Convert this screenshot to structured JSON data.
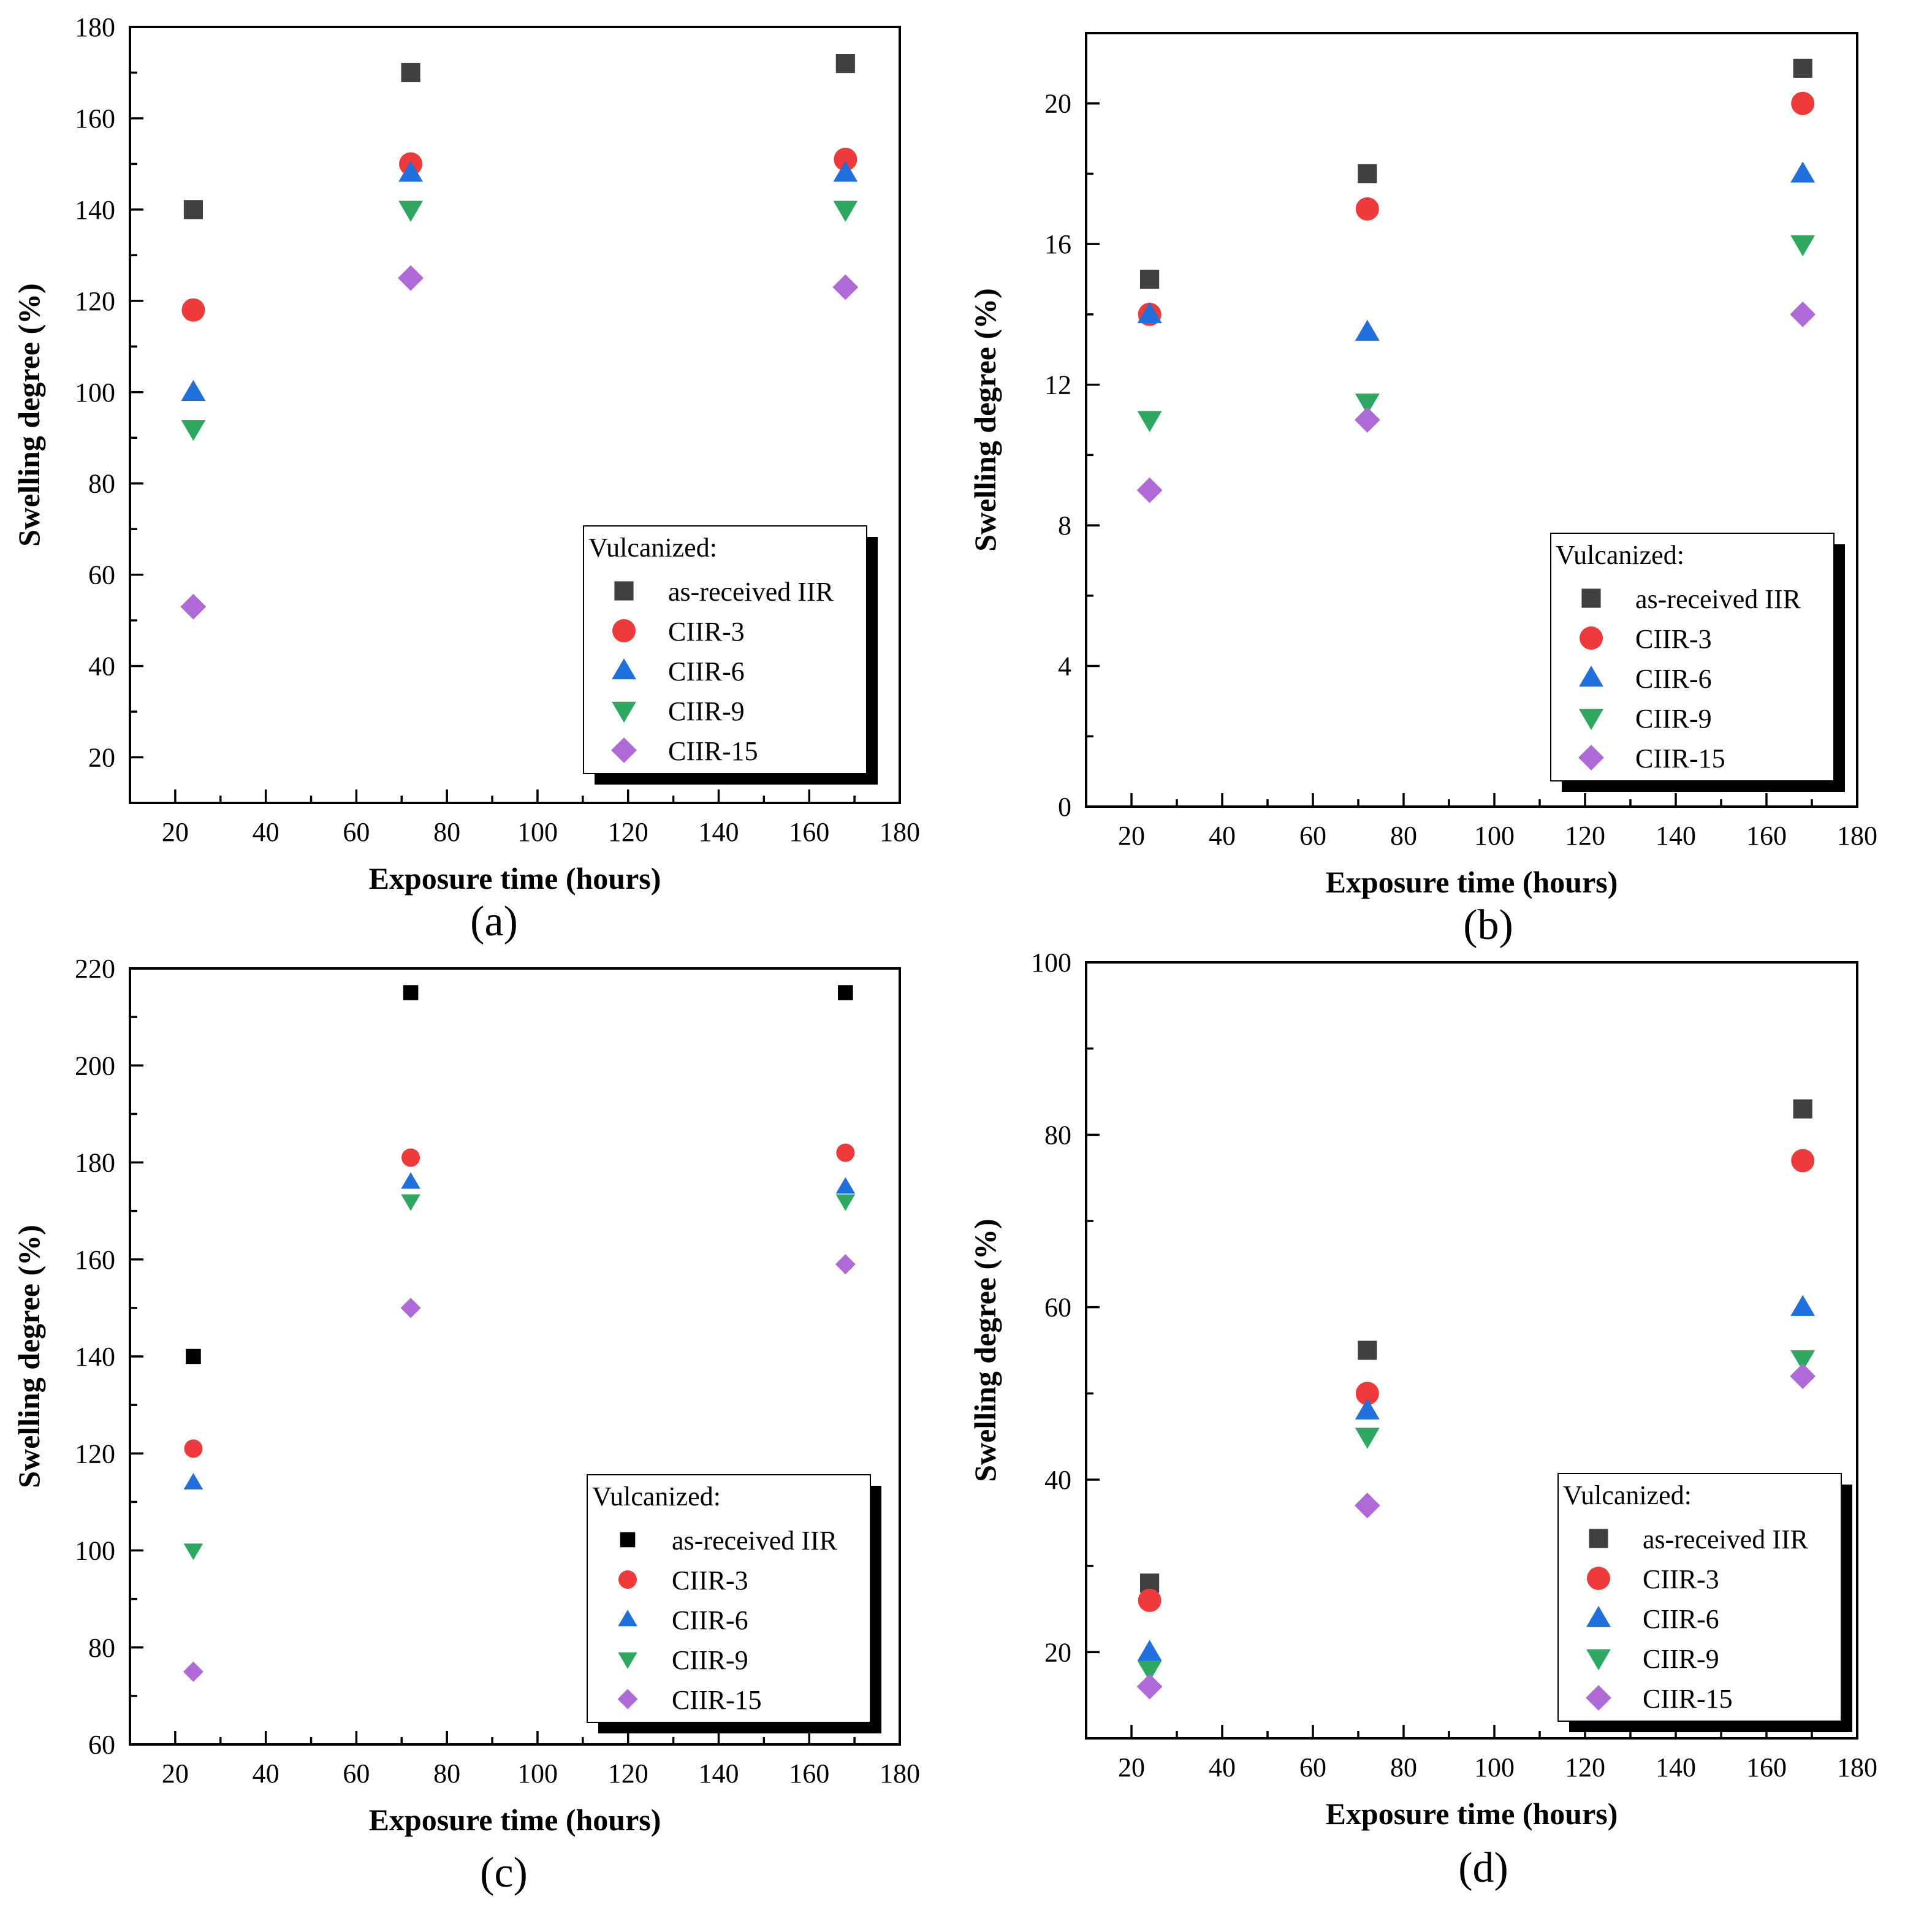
{
  "colors": {
    "as_received_iir": "#404040",
    "as_received_iir_c": "#000000",
    "ciir_3": "#ee3a3a",
    "ciir_6": "#1f6fdc",
    "ciir_9": "#2ea860",
    "ciir_15": "#b06ad8"
  },
  "chart_data": [
    {
      "type": "scatter",
      "panel_label": "(a)",
      "xlabel": "Exposure time (hours)",
      "ylabel": "Swelling degree (%)",
      "xlim": [
        10,
        180
      ],
      "ylim": [
        10,
        180
      ],
      "xticks": [
        20,
        40,
        60,
        80,
        100,
        120,
        140,
        160,
        180
      ],
      "yticks": [
        20,
        40,
        60,
        80,
        100,
        120,
        140,
        160,
        180
      ],
      "x": [
        24,
        72,
        168
      ],
      "legend_title": "Vulcanized:",
      "legend_position": "bottom-right",
      "series": [
        {
          "name": "as-received IIR",
          "marker": "square",
          "color_key": "as_received_iir",
          "values": [
            140,
            170,
            172
          ]
        },
        {
          "name": "CIIR-3",
          "marker": "circle",
          "color_key": "ciir_3",
          "values": [
            118,
            150,
            151
          ]
        },
        {
          "name": "CIIR-6",
          "marker": "triangle-up",
          "color_key": "ciir_6",
          "values": [
            100,
            148,
            148
          ]
        },
        {
          "name": "CIIR-9",
          "marker": "triangle-down",
          "color_key": "ciir_9",
          "values": [
            92,
            140,
            140
          ]
        },
        {
          "name": "CIIR-15",
          "marker": "diamond",
          "color_key": "ciir_15",
          "values": [
            53,
            125,
            123
          ]
        }
      ]
    },
    {
      "type": "scatter",
      "panel_label": "(b)",
      "xlabel": "Exposure time (hours)",
      "ylabel": "Swelling degree (%)",
      "xlim": [
        10,
        180
      ],
      "ylim": [
        0,
        22
      ],
      "xticks": [
        20,
        40,
        60,
        80,
        100,
        120,
        140,
        160,
        180
      ],
      "yticks": [
        0,
        4,
        8,
        12,
        16,
        20
      ],
      "x": [
        24,
        72,
        168
      ],
      "legend_title": "Vulcanized:",
      "legend_position": "bottom-right",
      "series": [
        {
          "name": "as-received IIR",
          "marker": "square",
          "color_key": "as_received_iir",
          "values": [
            15,
            18,
            21
          ]
        },
        {
          "name": "CIIR-3",
          "marker": "circle",
          "color_key": "ciir_3",
          "values": [
            14,
            17,
            20
          ]
        },
        {
          "name": "CIIR-6",
          "marker": "triangle-up",
          "color_key": "ciir_6",
          "values": [
            14,
            13.5,
            18
          ]
        },
        {
          "name": "CIIR-9",
          "marker": "triangle-down",
          "color_key": "ciir_9",
          "values": [
            11,
            11.5,
            16
          ]
        },
        {
          "name": "CIIR-15",
          "marker": "diamond",
          "color_key": "ciir_15",
          "values": [
            9,
            11,
            14
          ]
        }
      ]
    },
    {
      "type": "scatter",
      "panel_label": "(c)",
      "xlabel": "Exposure time (hours)",
      "ylabel": "Swelling degree (%)",
      "xlim": [
        10,
        180
      ],
      "ylim": [
        60,
        220
      ],
      "xticks": [
        20,
        40,
        60,
        80,
        100,
        120,
        140,
        160,
        180
      ],
      "yticks": [
        60,
        80,
        100,
        120,
        140,
        160,
        180,
        200,
        220
      ],
      "x": [
        24,
        72,
        168
      ],
      "legend_title": "Vulcanized:",
      "legend_position": "bottom-right",
      "series": [
        {
          "name": "as-received IIR",
          "marker": "square",
          "color_key": "as_received_iir_c",
          "values": [
            140,
            215,
            215
          ]
        },
        {
          "name": "CIIR-3",
          "marker": "circle",
          "color_key": "ciir_3",
          "values": [
            121,
            181,
            182
          ]
        },
        {
          "name": "CIIR-6",
          "marker": "triangle-up",
          "color_key": "ciir_6",
          "values": [
            114,
            176,
            175
          ]
        },
        {
          "name": "CIIR-9",
          "marker": "triangle-down",
          "color_key": "ciir_9",
          "values": [
            100,
            172,
            172
          ]
        },
        {
          "name": "CIIR-15",
          "marker": "diamond",
          "color_key": "ciir_15",
          "values": [
            75,
            150,
            159
          ]
        }
      ]
    },
    {
      "type": "scatter",
      "panel_label": "(d)",
      "xlabel": "Exposure time (hours)",
      "ylabel": "Swelling degree (%)",
      "xlim": [
        10,
        180
      ],
      "ylim": [
        10,
        100
      ],
      "xticks": [
        20,
        40,
        60,
        80,
        100,
        120,
        140,
        160,
        180
      ],
      "yticks": [
        20,
        40,
        60,
        80,
        100
      ],
      "x": [
        24,
        72,
        168
      ],
      "legend_title": "Vulcanized:",
      "legend_position": "bottom-right",
      "series": [
        {
          "name": "as-received IIR",
          "marker": "square",
          "color_key": "as_received_iir",
          "values": [
            28,
            55,
            83
          ]
        },
        {
          "name": "CIIR-3",
          "marker": "circle",
          "color_key": "ciir_3",
          "values": [
            26,
            50,
            77
          ]
        },
        {
          "name": "CIIR-6",
          "marker": "triangle-up",
          "color_key": "ciir_6",
          "values": [
            20,
            48,
            60
          ]
        },
        {
          "name": "CIIR-9",
          "marker": "triangle-down",
          "color_key": "ciir_9",
          "values": [
            18,
            45,
            54
          ]
        },
        {
          "name": "CIIR-15",
          "marker": "diamond",
          "color_key": "ciir_15",
          "values": [
            16,
            37,
            52
          ]
        }
      ]
    }
  ]
}
